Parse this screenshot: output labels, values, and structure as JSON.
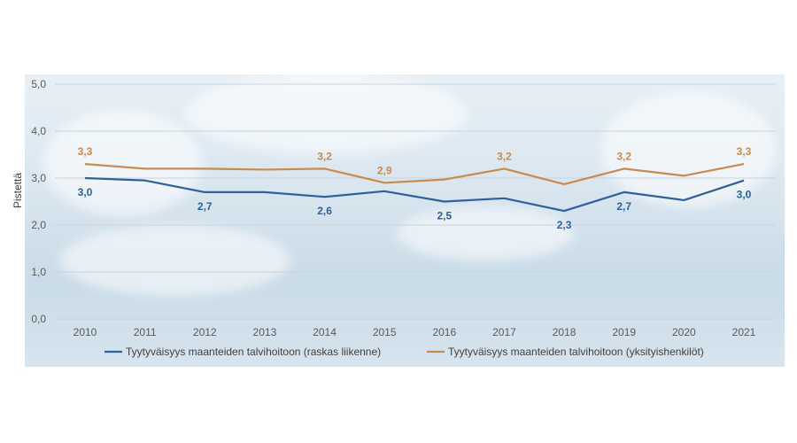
{
  "chart_data": {
    "type": "line",
    "title": "",
    "xlabel": "",
    "ylabel": "Pistettä",
    "ylim": [
      0,
      5
    ],
    "yticks": [
      "0,0",
      "1,0",
      "2,0",
      "3,0",
      "4,0",
      "5,0"
    ],
    "categories": [
      "2010",
      "2011",
      "2012",
      "2013",
      "2014",
      "2015",
      "2016",
      "2017",
      "2018",
      "2019",
      "2020",
      "2021"
    ],
    "grid": true,
    "legend_position": "bottom",
    "series": [
      {
        "name": "Tyytyväisyys maanteiden talvihoitoon (raskas liikenne)",
        "color": "#2e5f9e",
        "values": [
          3.0,
          2.95,
          2.7,
          2.7,
          2.6,
          2.72,
          2.5,
          2.57,
          2.3,
          2.7,
          2.53,
          2.95
        ],
        "labels": [
          "3,0",
          null,
          "2,7",
          null,
          "2,6",
          null,
          "2,5",
          null,
          "2,3",
          "2,7",
          null,
          "3,0"
        ]
      },
      {
        "name": "Tyytyväisyys maanteiden talvihoitoon (yksityishenkilöt)",
        "color": "#c98a4e",
        "values": [
          3.3,
          3.2,
          3.2,
          3.18,
          3.2,
          2.9,
          2.97,
          3.2,
          2.87,
          3.2,
          3.05,
          3.3
        ],
        "labels": [
          "3,3",
          null,
          null,
          null,
          "3,2",
          "2,9",
          null,
          "3,2",
          null,
          "3,2",
          null,
          "3,3"
        ]
      }
    ]
  }
}
